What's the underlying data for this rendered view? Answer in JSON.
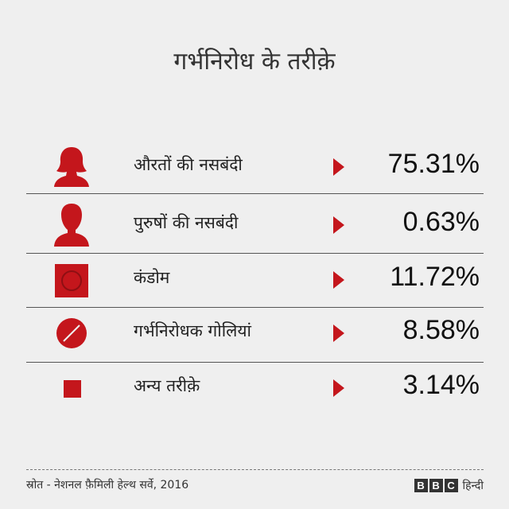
{
  "title": "गर्भनिरोध के तरीक़े",
  "rows": [
    {
      "label": "औरतों की नसबंदी",
      "value": "75.31%"
    },
    {
      "label": "पुरुषों की नसबंदी",
      "value": "0.63%"
    },
    {
      "label": "कंडोम",
      "value": "11.72%"
    },
    {
      "label": "गर्भनिरोधक गोलियां",
      "value": "8.58%"
    },
    {
      "label": "अन्य तरीक़े",
      "value": "3.14%"
    }
  ],
  "source": "स्रोत - नेशनल फ़ैमिली हेल्थ सर्वे, 2016",
  "logo": {
    "letters": [
      "B",
      "B",
      "C"
    ],
    "text": "हिन्दी"
  }
}
